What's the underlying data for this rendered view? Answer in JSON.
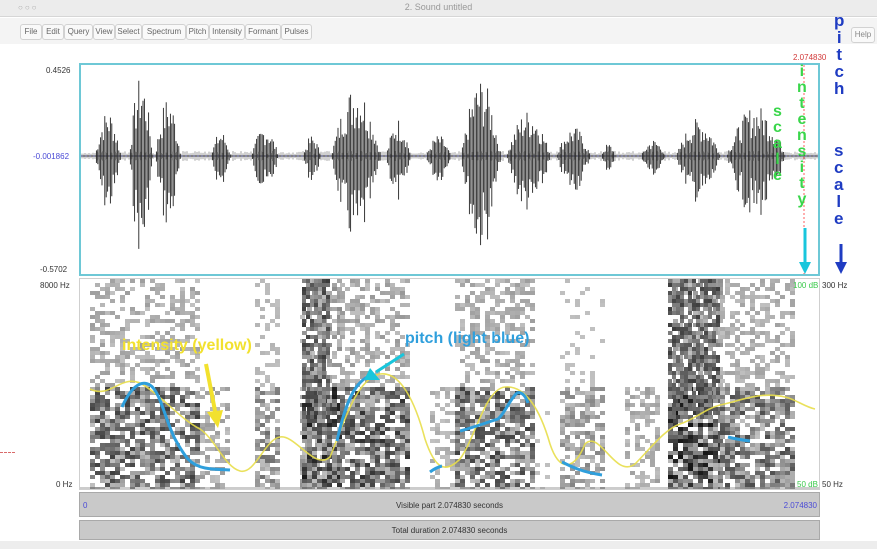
{
  "window": {
    "title": "2. Sound untitled",
    "controls": "○○○"
  },
  "menu": {
    "items": [
      "File",
      "Edit",
      "Query",
      "View",
      "Select",
      "Spectrum",
      "Pitch",
      "Intensity",
      "Formant",
      "Pulses"
    ],
    "help": "Help"
  },
  "waveform": {
    "y_max": "0.4526",
    "y_zero": "-0.001862",
    "y_min": "-0.5702",
    "cursor_time": "2.074830"
  },
  "spectrogram": {
    "freq_max": "8000 Hz",
    "freq_min": "0 Hz",
    "intensity_max": "100 dB",
    "intensity_min": "50 dB",
    "pitch_max": "300 Hz",
    "pitch_min": "50 Hz"
  },
  "annotations": {
    "intensity_scale_word1": [
      "s",
      "c",
      "a",
      "l",
      "e"
    ],
    "intensity_scale_word2": [
      "i",
      "n",
      "t",
      "e",
      "n",
      "s",
      "i",
      "t",
      "y"
    ],
    "pitch_scale_word1": [
      "p",
      "i",
      "t",
      "c",
      "h"
    ],
    "pitch_scale_word2": [
      "s",
      "c",
      "a",
      "l",
      "e"
    ],
    "intensity_label": "intensity (yellow)",
    "pitch_label": "pitch (light blue)"
  },
  "colors": {
    "intensity": "#f2e12e",
    "pitch": "#2f9fdc",
    "intensity_scale": "#39d64a",
    "pitch_scale": "#1f3cc2",
    "wave_border": "#6ec8d6"
  },
  "time_axis": {
    "start": "0",
    "end": "2.074830"
  },
  "status": {
    "visible_part": "Visible part 2.074830 seconds",
    "total_duration": "Total duration 2.074830 seconds"
  }
}
